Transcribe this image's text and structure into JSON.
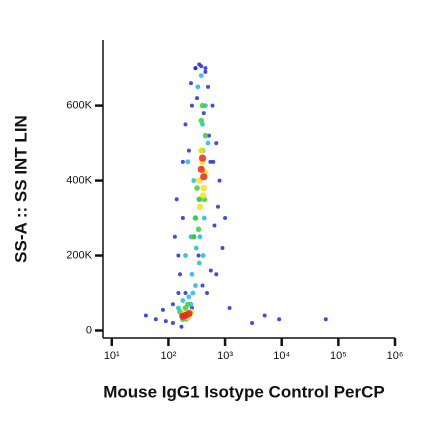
{
  "chart_data": {
    "type": "scatter",
    "xlabel": "Mouse IgG1 Isotype Control PerCP",
    "ylabel": "SS-A :: SS INT LIN",
    "xscale": "log",
    "xlim": [
      7,
      1000000
    ],
    "ylim": [
      -20000,
      775000
    ],
    "xticks": [
      {
        "value": 10,
        "label": "10¹"
      },
      {
        "value": 100,
        "label": "10²"
      },
      {
        "value": 1000,
        "label": "10³"
      },
      {
        "value": 10000,
        "label": "10⁴"
      },
      {
        "value": 100000,
        "label": "10⁵"
      },
      {
        "value": 1000000,
        "label": "10⁶"
      }
    ],
    "yticks": [
      0,
      {
        "value": 200000,
        "label": "200K"
      },
      {
        "value": 400000,
        "label": "400K"
      },
      {
        "value": 600000,
        "label": "600K"
      }
    ],
    "series": [
      {
        "color": "#1f2fd6",
        "x": [
          40,
          60,
          80,
          90,
          120,
          150,
          700,
          900,
          1200,
          3000,
          5000,
          9000,
          60000,
          150,
          180,
          250,
          300,
          350,
          450,
          500,
          600,
          700,
          800,
          1000,
          130,
          160,
          200,
          260,
          320,
          420,
          520,
          620,
          140,
          180,
          230,
          280,
          340,
          400,
          480,
          560,
          650,
          750,
          200,
          260,
          300,
          380,
          450,
          550,
          120,
          170
        ],
        "values": [
          40000,
          30000,
          55000,
          25000,
          70000,
          100000,
          150000,
          220000,
          60000,
          20000,
          40000,
          30000,
          30000,
          200000,
          300000,
          660000,
          700000,
          710000,
          690000,
          650000,
          600000,
          500000,
          400000,
          300000,
          250000,
          150000,
          550000,
          600000,
          620000,
          580000,
          520000,
          450000,
          350000,
          450000,
          480000,
          250000,
          200000,
          120000,
          100000,
          160000,
          280000,
          330000,
          100000,
          60000,
          700000,
          705000,
          700000,
          450000,
          20000,
          10000
        ]
      },
      {
        "color": "#1fb8e0",
        "x": [
          200,
          250,
          300,
          350,
          400,
          450,
          500,
          220,
          280,
          330,
          380,
          430,
          260,
          310,
          360,
          410,
          150,
          180,
          230,
          270,
          300,
          350,
          170,
          210,
          250
        ],
        "values": [
          200000,
          250000,
          300000,
          350000,
          550000,
          600000,
          500000,
          450000,
          400000,
          650000,
          680000,
          300000,
          150000,
          220000,
          250000,
          200000,
          60000,
          80000,
          90000,
          100000,
          120000,
          180000,
          40000,
          30000,
          70000
        ]
      },
      {
        "color": "#3ccf3c",
        "x": [
          300,
          350,
          400,
          450,
          320,
          380,
          430,
          280,
          340,
          400,
          160,
          200,
          240,
          180,
          220
        ],
        "values": [
          300000,
          350000,
          480000,
          520000,
          380000,
          560000,
          350000,
          250000,
          270000,
          600000,
          50000,
          60000,
          45000,
          30000,
          70000
        ]
      },
      {
        "color": "#f2e21c",
        "x": [
          350,
          400,
          420,
          380,
          450,
          190,
          220,
          250,
          360,
          410
        ],
        "values": [
          400000,
          450000,
          380000,
          480000,
          420000,
          45000,
          35000,
          50000,
          330000,
          360000
        ]
      },
      {
        "color": "#e8281c",
        "x": [
          380,
          420,
          400,
          200,
          230,
          180
        ],
        "values": [
          430000,
          410000,
          460000,
          40000,
          45000,
          38000
        ]
      }
    ]
  }
}
